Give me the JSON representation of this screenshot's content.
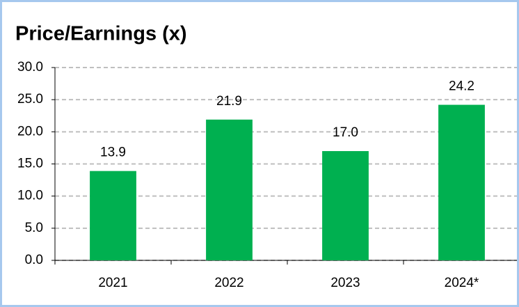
{
  "chart_data": {
    "type": "bar",
    "title": "Price/Earnings  (x)",
    "categories": [
      "2021",
      "2022",
      "2023",
      "2024*"
    ],
    "values": [
      13.9,
      21.9,
      17.0,
      24.2
    ],
    "value_labels": [
      "13.9",
      "21.9",
      "17.0",
      "24.2"
    ],
    "color": "#00b050",
    "ylim": [
      0,
      30
    ],
    "yticks": [
      {
        "value": 0,
        "label": "0.0"
      },
      {
        "value": 5,
        "label": "5.0"
      },
      {
        "value": 10,
        "label": "10.0"
      },
      {
        "value": 15,
        "label": "15.0"
      },
      {
        "value": 20,
        "label": "20.0"
      },
      {
        "value": 25,
        "label": "25.0"
      },
      {
        "value": 30,
        "label": "30.0"
      }
    ],
    "grid": true
  }
}
